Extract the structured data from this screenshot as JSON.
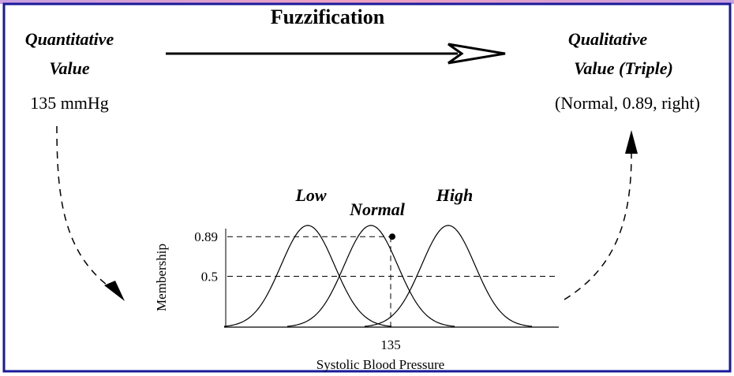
{
  "title": "Fuzzification",
  "input": {
    "heading": [
      "Quantitative",
      "Value"
    ],
    "value": "135 mmHg"
  },
  "output": {
    "heading": [
      "Qualitative",
      "Value (Triple)"
    ],
    "value": "(Normal, 0.89, right)"
  },
  "chart": {
    "sets": [
      "Low",
      "Normal",
      "High"
    ],
    "y_label": "Membership",
    "y_ticks": [
      0.89,
      0.5
    ],
    "x_tick": 135,
    "x_label": "Systolic Blood Pressure"
  }
}
